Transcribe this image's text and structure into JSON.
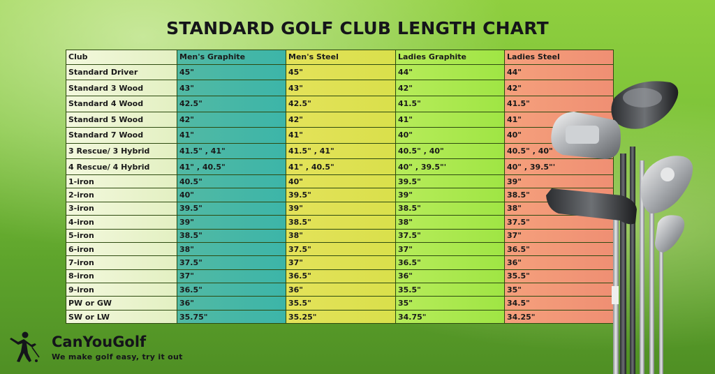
{
  "title": "STANDARD GOLF CLUB LENGTH CHART",
  "table": {
    "headers": [
      "Club",
      "Men's Graphite",
      "Men's Steel",
      "Ladies Graphite",
      "Ladies Steel"
    ],
    "rows": [
      [
        "Standard Driver",
        "45\"",
        "45\"",
        "44\"",
        "44\""
      ],
      [
        "Standard 3 Wood",
        "43\"",
        "43\"",
        "42\"",
        "42\""
      ],
      [
        "Standard 4 Wood",
        "42.5\"",
        "42.5\"",
        "41.5\"",
        "41.5\""
      ],
      [
        "Standard 5 Wood",
        "42\"",
        "42\"",
        "41\"",
        "41\""
      ],
      [
        "Standard 7 Wood",
        "41\"",
        "41\"",
        "40\"",
        "40\""
      ],
      [
        "3 Rescue/ 3 Hybrid",
        "41.5\" , 41\"",
        "41.5\" , 41\"",
        "40.5\" , 40\"",
        "40.5\" , 40\""
      ],
      [
        "4 Rescue/ 4 Hybrid",
        "41\" , 40.5\"",
        "41\" , 40.5\"",
        "40\" , 39.5\"'",
        "40\" , 39.5\"'"
      ],
      [
        "1-iron",
        "40.5\"",
        "40\"",
        "39.5\"",
        "39\""
      ],
      [
        "2-iron",
        "40\"",
        "39.5\"",
        "39\"",
        "38.5\""
      ],
      [
        "3-iron",
        "39.5\"",
        "39\"",
        "38.5\"",
        "38\""
      ],
      [
        "4-iron",
        "39\"",
        "38.5\"",
        "38\"",
        "37.5\""
      ],
      [
        "5-iron",
        "38.5\"",
        "38\"",
        "37.5\"",
        "37\""
      ],
      [
        "6-iron",
        "38\"",
        "37.5\"",
        "37\"",
        "36.5\""
      ],
      [
        "7-iron",
        "37.5\"",
        "37\"",
        "36.5\"",
        "36\""
      ],
      [
        "8-iron",
        "37\"",
        "36.5\"",
        "36\"",
        "35.5\""
      ],
      [
        "9-iron",
        "36.5\"",
        "36\"",
        "35.5\"",
        "35\""
      ],
      [
        "PW or GW",
        "36\"",
        "35.5\"",
        "35\"",
        "34.5\""
      ],
      [
        "SW or LW",
        "35.75\"",
        "35.25\"",
        "34.75\"",
        "34.25\""
      ]
    ]
  },
  "brand": {
    "name": "CanYouGolf",
    "tagline": "We make golf easy, try it out"
  },
  "colors": {
    "club_column": "#eaf4cf",
    "mens_graphite": "#45b7a6",
    "mens_steel": "#dee14f",
    "ladies_graphite": "#a9e84c",
    "ladies_steel": "#f29677"
  },
  "icons": [
    "golfer-icon",
    "golf-clubs-illustration"
  ]
}
